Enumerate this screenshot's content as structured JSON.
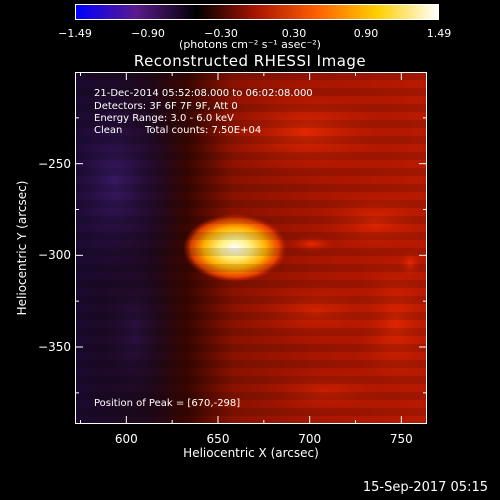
{
  "colorbar": {
    "ticks": [
      "−1.49",
      "−0.90",
      "−0.30",
      "0.30",
      "0.90",
      "1.49"
    ],
    "units": "(photons cm⁻² s⁻¹ asec⁻²)",
    "colors": [
      "#0000ff",
      "#5a1a8c",
      "#000000",
      "#aa1500",
      "#ff6000",
      "#ffd000",
      "#ffffff"
    ]
  },
  "chart_data": {
    "type": "heatmap",
    "title": "Reconstructed RHESSI Image",
    "xlabel": "Heliocentric X (arcsec)",
    "ylabel": "Heliocentric Y (arcsec)",
    "xlim": [
      572,
      764
    ],
    "ylim": [
      -392,
      -200
    ],
    "xticks": [
      600,
      650,
      700,
      750
    ],
    "yticks": [
      -250,
      -300,
      -350
    ],
    "value_range": [
      -1.49,
      1.49
    ],
    "peak": [
      670,
      -298
    ],
    "annotations": {
      "time_range": "21-Dec-2014 05:52:08.000 to 06:02:08.000",
      "detectors": "Detectors: 3F 6F 7F 9F, Att 0",
      "energy": "Energy Range: 3.0 - 6.0 keV",
      "clean": "Clean",
      "total_counts": "Total counts: 7.50E+04",
      "peak_position": "Position of Peak = [670,-298]"
    }
  },
  "footer": {
    "timestamp": "15-Sep-2017 05:15"
  }
}
